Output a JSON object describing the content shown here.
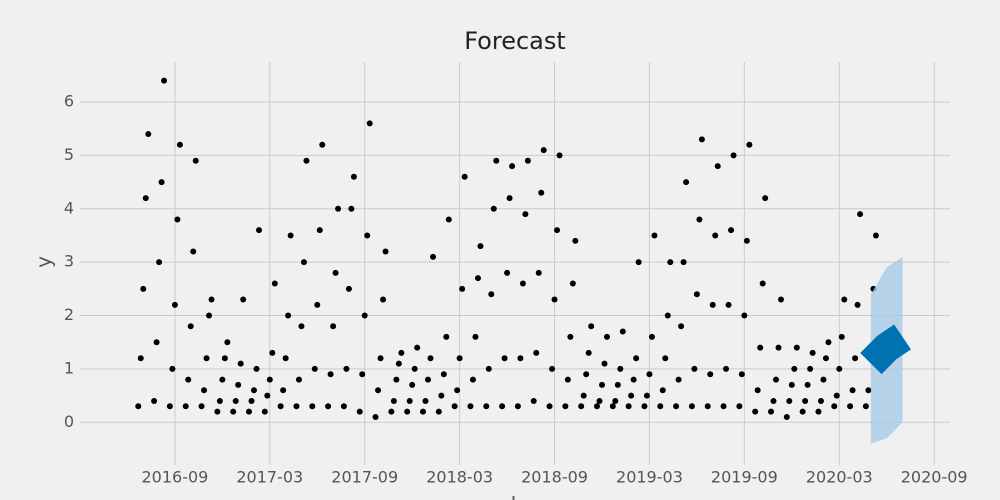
{
  "chart_data": {
    "type": "scatter",
    "title": "Forecast",
    "x_label": "ds",
    "y_label": "y",
    "color": "#000000",
    "grid": true,
    "x": [
      "2016-07",
      "2016-08",
      "2016-09",
      "2016-10",
      "2016-11",
      "2016-12",
      "2017-01",
      "2017-02",
      "2017-03",
      "2017-04",
      "2017-05",
      "2017-06",
      "2017-07",
      "2017-08",
      "2017-09",
      "2017-10",
      "2017-11",
      "2017-12",
      "2018-01",
      "2018-02",
      "2018-03",
      "2018-04",
      "2018-05",
      "2018-06",
      "2018-07",
      "2018-08",
      "2018-09",
      "2018-10",
      "2018-11",
      "2018-12",
      "2019-01",
      "2019-02",
      "2019-03",
      "2019-04",
      "2019-05",
      "2019-06",
      "2019-07",
      "2019-08",
      "2019-09",
      "2019-10",
      "2019-11",
      "2019-12",
      "2020-01",
      "2020-02",
      "2020-03",
      "2020-04",
      "2020-05"
    ],
    "values": [
      [
        0.3,
        1.2,
        2.5,
        4.2,
        5.4
      ],
      [
        0.4,
        1.5,
        3.0,
        4.5,
        6.4
      ],
      [
        0.3,
        1.0,
        2.2,
        3.8,
        5.2
      ],
      [
        0.3,
        0.8,
        1.8,
        3.2,
        4.9
      ],
      [
        0.3,
        0.6,
        1.2,
        2.0,
        2.3
      ],
      [
        0.2,
        0.4,
        0.8,
        1.2,
        1.5
      ],
      [
        0.2,
        0.4,
        0.7,
        1.1,
        2.3
      ],
      [
        0.2,
        0.4,
        0.6,
        1.0,
        3.6
      ],
      [
        0.2,
        0.5,
        0.8,
        1.3,
        2.6
      ],
      [
        0.3,
        0.6,
        1.2,
        2.0,
        3.5
      ],
      [
        0.3,
        0.8,
        1.8,
        3.0,
        4.9
      ],
      [
        0.3,
        1.0,
        2.2,
        3.6,
        5.2
      ],
      [
        0.3,
        0.9,
        1.8,
        2.8,
        4.0
      ],
      [
        0.3,
        1.0,
        2.5,
        4.0,
        4.6
      ],
      [
        0.2,
        0.9,
        2.0,
        3.5,
        5.6
      ],
      [
        0.1,
        0.6,
        1.2,
        2.3,
        3.2
      ],
      [
        0.2,
        0.4,
        0.8,
        1.1,
        1.3
      ],
      [
        0.2,
        0.4,
        0.7,
        1.0,
        1.4
      ],
      [
        0.2,
        0.4,
        0.8,
        1.2,
        3.1
      ],
      [
        0.2,
        0.5,
        0.9,
        1.6,
        3.8
      ],
      [
        0.3,
        0.6,
        1.2,
        2.5,
        4.6
      ],
      [
        0.3,
        0.8,
        1.6,
        2.7,
        3.3
      ],
      [
        0.3,
        1.0,
        2.4,
        4.0,
        4.9
      ],
      [
        0.3,
        1.2,
        2.8,
        4.2,
        4.8
      ],
      [
        0.3,
        1.2,
        2.6,
        3.9,
        4.9
      ],
      [
        0.4,
        1.3,
        2.8,
        4.3,
        5.1
      ],
      [
        0.3,
        1.0,
        2.3,
        3.6,
        5.0
      ],
      [
        0.3,
        0.8,
        1.6,
        2.6,
        3.4
      ],
      [
        0.3,
        0.5,
        0.9,
        1.3,
        1.8
      ],
      [
        0.3,
        0.4,
        0.7,
        1.1,
        1.6
      ],
      [
        0.3,
        0.4,
        0.7,
        1.0,
        1.7
      ],
      [
        0.3,
        0.5,
        0.8,
        1.2,
        3.0
      ],
      [
        0.3,
        0.5,
        0.9,
        1.6,
        3.5
      ],
      [
        0.3,
        0.6,
        1.2,
        2.0,
        3.0
      ],
      [
        0.3,
        0.8,
        1.8,
        3.0,
        4.5
      ],
      [
        0.3,
        1.0,
        2.4,
        3.8,
        5.3
      ],
      [
        0.3,
        0.9,
        2.2,
        3.5,
        4.8
      ],
      [
        0.3,
        1.0,
        2.2,
        3.6,
        5.0
      ],
      [
        0.3,
        0.9,
        2.0,
        3.4,
        5.2
      ],
      [
        0.2,
        0.6,
        1.4,
        2.6,
        4.2
      ],
      [
        0.2,
        0.4,
        0.8,
        1.4,
        2.3
      ],
      [
        0.1,
        0.4,
        0.7,
        1.0,
        1.4
      ],
      [
        0.2,
        0.4,
        0.7,
        1.0,
        1.3
      ],
      [
        0.2,
        0.4,
        0.8,
        1.2,
        1.5
      ],
      [
        0.3,
        0.5,
        1.0,
        1.6,
        2.3
      ],
      [
        0.3,
        0.6,
        1.2,
        2.2,
        3.9
      ],
      [
        0.3,
        0.6,
        1.4,
        2.5,
        3.5
      ]
    ],
    "forecast": {
      "x": [
        "2020-05",
        "2020-06",
        "2020-07"
      ],
      "values": [
        1.1,
        1.4,
        1.6
      ],
      "lower": [
        -0.4,
        -0.3,
        0.0
      ],
      "upper": [
        2.4,
        2.9,
        3.1
      ],
      "color": "#0072b2",
      "band_color": "#a6cbe6"
    },
    "xlim": [
      "2016-03",
      "2020-10"
    ],
    "xticks": [
      "2016-09",
      "2017-03",
      "2017-09",
      "2018-03",
      "2018-09",
      "2019-03",
      "2019-09",
      "2020-03",
      "2020-09"
    ],
    "ylim": [
      -0.8,
      6.75
    ],
    "yticks": [
      0,
      1,
      2,
      3,
      4,
      5,
      6
    ]
  }
}
